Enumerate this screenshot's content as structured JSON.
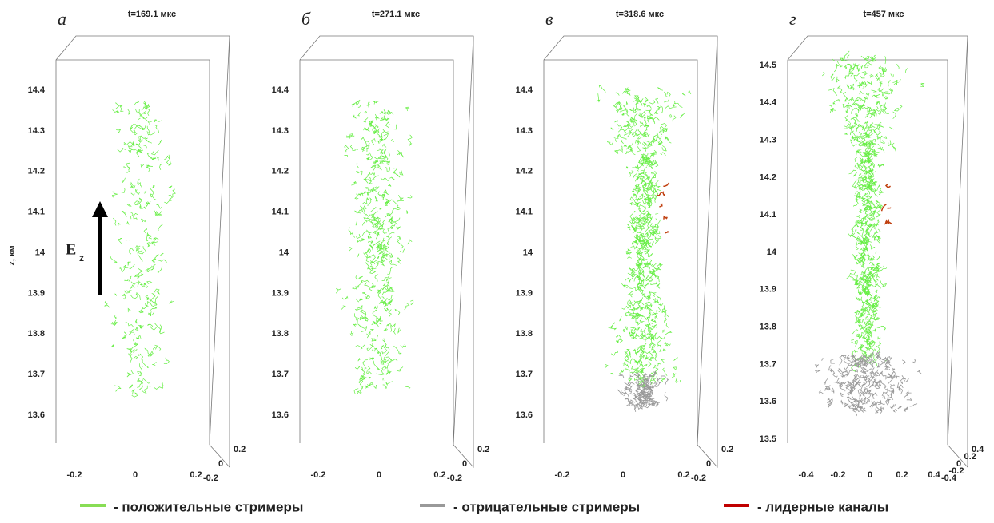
{
  "axis_title": "z, км",
  "field_label": "E",
  "field_subscript": "z",
  "panels": [
    {
      "letter": "а",
      "title": "t=169.1 мкс",
      "zticks": [
        "14.4",
        "14.3",
        "14.2",
        "14.1",
        "14",
        "13.9",
        "13.8",
        "13.7",
        "13.6"
      ],
      "xticks": [
        "-0.2",
        "0",
        "0.2"
      ],
      "yticks": [
        "0.2",
        "0",
        "-0.2"
      ]
    },
    {
      "letter": "б",
      "title": "t=271.1 мкс",
      "zticks": [
        "14.4",
        "14.3",
        "14.2",
        "14.1",
        "14",
        "13.9",
        "13.8",
        "13.7",
        "13.6"
      ],
      "xticks": [
        "-0.2",
        "0",
        "0.2"
      ],
      "yticks": [
        "0.2",
        "0",
        "-0.2"
      ]
    },
    {
      "letter": "в",
      "title": "t=318.6 мкс",
      "zticks": [
        "14.4",
        "14.3",
        "14.2",
        "14.1",
        "14",
        "13.9",
        "13.8",
        "13.7",
        "13.6"
      ],
      "xticks": [
        "-0.2",
        "0",
        "0.2"
      ],
      "yticks": [
        "0.2",
        "0",
        "-0.2"
      ]
    },
    {
      "letter": "г",
      "title": "t=457 мкс",
      "zticks": [
        "14.5",
        "14.4",
        "14.3",
        "14.2",
        "14.1",
        "14",
        "13.9",
        "13.8",
        "13.7",
        "13.6",
        "13.5"
      ],
      "xticks": [
        "-0.4",
        "-0.2",
        "0",
        "0.2",
        "0.4"
      ],
      "yticks": [
        "0.4",
        "0.2",
        "0",
        "-0.2",
        "-0.4"
      ]
    }
  ],
  "legend": [
    {
      "label": "- положительные стримеры",
      "color": "#88dd55"
    },
    {
      "label": "- отрицательные стримеры",
      "color": "#999999"
    },
    {
      "label": "- лидерные каналы",
      "color": "#c00000"
    }
  ]
}
